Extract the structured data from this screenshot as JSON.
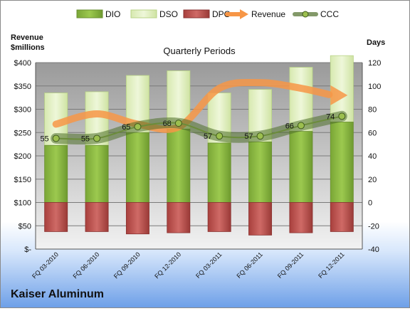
{
  "company": "Kaiser Aluminum",
  "chart_data": {
    "type": "bar",
    "title": "Quarterly Periods",
    "ylabel_left": "Revenue\n$millions",
    "ylabel_right": "Days",
    "categories": [
      "FQ 03-2010",
      "FQ 06-2010",
      "FQ 09-2010",
      "FQ 12-2010",
      "FQ 03-2011",
      "FQ 06-2011",
      "FQ 09-2011",
      "FQ 12-2011"
    ],
    "left_axis": {
      "min": 0,
      "max": 400,
      "step": 50,
      "tick_labels": [
        "$-",
        "$50",
        "$100",
        "$150",
        "$200",
        "$250",
        "$300",
        "$350",
        "$400"
      ]
    },
    "right_axis": {
      "min": -40,
      "max": 120,
      "step": 20
    },
    "series": [
      {
        "name": "DIO",
        "axis": "right",
        "type": "stacked-bar",
        "color": "#8dbb3f",
        "values": [
          49,
          49,
          60,
          63,
          51,
          52,
          61,
          69
        ]
      },
      {
        "name": "DSO",
        "axis": "right",
        "type": "stacked-bar",
        "color": "#e2f0c2",
        "values": [
          45,
          46,
          49,
          50,
          43,
          45,
          55,
          57
        ]
      },
      {
        "name": "DPO",
        "axis": "right",
        "type": "negative-bar",
        "color": "#c0504d",
        "values": [
          -25,
          -25,
          -27,
          -26,
          -25,
          -28,
          -26,
          -25
        ]
      },
      {
        "name": "Revenue",
        "axis": "left",
        "type": "arrow-line",
        "color": "#f79646",
        "values": [
          268,
          290,
          268,
          262,
          345,
          357,
          345,
          330
        ]
      },
      {
        "name": "CCC",
        "axis": "right",
        "type": "line",
        "color": "#6b8c3a",
        "values": [
          55,
          55,
          65,
          68,
          57,
          57,
          66,
          74
        ],
        "labels": [
          "55",
          "55",
          "65",
          "68",
          "57",
          "57",
          "66",
          "74"
        ]
      }
    ],
    "legend_position": "top",
    "grid": true
  }
}
